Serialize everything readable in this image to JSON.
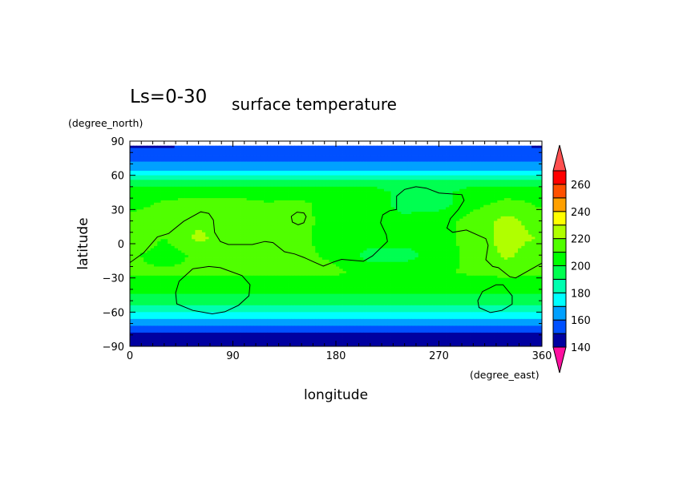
{
  "chart_data": {
    "type": "heatmap",
    "title_left": "Ls=0-30",
    "title_right": "surface temperature",
    "xlabel": "longitude",
    "ylabel": "latitude",
    "xunit": "(degree_east)",
    "yunit": "(degree_north)",
    "xlim": [
      0,
      360
    ],
    "ylim": [
      -90,
      90
    ],
    "xticks": [
      0,
      90,
      180,
      270,
      360
    ],
    "xtick_labels": [
      "0",
      "90",
      "180",
      "270",
      "360"
    ],
    "yticks": [
      90,
      60,
      30,
      0,
      -30,
      -60,
      -90
    ],
    "ytick_labels": [
      "90",
      "60",
      "30",
      "0",
      "−30",
      "−60",
      "−90"
    ],
    "grid": false,
    "colorbar": {
      "levels": [
        140,
        150,
        160,
        170,
        180,
        190,
        200,
        210,
        220,
        230,
        240,
        250,
        260,
        270
      ],
      "labels": [
        "140",
        "160",
        "180",
        "200",
        "220",
        "240",
        "260"
      ],
      "colors": [
        "#0000a0",
        "#0050ff",
        "#00a0ff",
        "#00ffff",
        "#00ffb0",
        "#00ff50",
        "#00ff00",
        "#50ff00",
        "#b0ff00",
        "#ffff00",
        "#ffa000",
        "#ff5000",
        "#ff0000"
      ],
      "over_color": "#ff5050",
      "under_color": "#ff10a0"
    },
    "grid_lon": [
      0,
      30,
      60,
      90,
      120,
      150,
      180,
      210,
      240,
      270,
      300,
      330,
      360
    ],
    "grid_lat": [
      86,
      80,
      75,
      66,
      62,
      58,
      54,
      45,
      35,
      20,
      5,
      -10,
      -25,
      -35,
      -42,
      -50,
      -56,
      -63,
      -68,
      -73,
      -79,
      -86
    ],
    "values": [
      [
        146,
        146,
        155,
        155,
        155,
        155,
        155,
        155,
        155,
        155,
        155,
        155,
        146
      ],
      [
        155,
        155,
        155,
        155,
        155,
        155,
        155,
        155,
        155,
        155,
        155,
        155,
        155
      ],
      [
        156,
        156,
        156,
        156,
        156,
        156,
        156,
        156,
        156,
        156,
        156,
        156,
        156
      ],
      [
        166,
        166,
        166,
        166,
        166,
        166,
        166,
        166,
        166,
        166,
        166,
        166,
        166
      ],
      [
        176,
        176,
        176,
        176,
        176,
        176,
        176,
        176,
        176,
        176,
        176,
        176,
        176
      ],
      [
        186,
        186,
        186,
        186,
        186,
        186,
        186,
        186,
        186,
        186,
        186,
        186,
        186
      ],
      [
        196,
        196,
        196,
        196,
        196,
        196,
        196,
        196,
        196,
        196,
        196,
        196,
        196
      ],
      [
        205,
        205,
        205,
        205,
        205,
        205,
        205,
        205,
        196,
        196,
        205,
        205,
        205
      ],
      [
        206,
        212,
        215,
        215,
        211,
        212,
        205,
        205,
        196,
        196,
        206,
        214,
        208
      ],
      [
        215,
        212,
        218,
        215,
        212,
        213,
        205,
        205,
        203,
        205,
        215,
        223,
        215
      ],
      [
        219,
        210,
        223,
        212,
        212,
        212,
        205,
        205,
        205,
        205,
        215,
        224,
        219
      ],
      [
        212,
        205,
        212,
        212,
        212,
        212,
        208,
        196,
        196,
        205,
        213,
        222,
        212
      ],
      [
        212,
        212,
        212,
        212,
        212,
        212,
        212,
        205,
        205,
        208,
        212,
        214,
        212
      ],
      [
        205,
        205,
        205,
        205,
        205,
        205,
        205,
        205,
        205,
        205,
        205,
        205,
        205
      ],
      [
        202,
        202,
        202,
        202,
        202,
        202,
        202,
        202,
        202,
        202,
        202,
        202,
        202
      ],
      [
        194,
        194,
        194,
        194,
        194,
        194,
        194,
        194,
        194,
        194,
        194,
        194,
        194
      ],
      [
        186,
        186,
        186,
        186,
        186,
        186,
        186,
        186,
        186,
        186,
        186,
        186,
        186
      ],
      [
        176,
        176,
        176,
        176,
        176,
        176,
        176,
        176,
        176,
        176,
        176,
        176,
        176
      ],
      [
        168,
        168,
        168,
        168,
        168,
        168,
        168,
        168,
        168,
        168,
        168,
        168,
        168
      ],
      [
        158,
        158,
        158,
        158,
        158,
        158,
        158,
        158,
        158,
        158,
        158,
        158,
        158
      ],
      [
        146,
        146,
        146,
        146,
        146,
        146,
        146,
        146,
        146,
        146,
        146,
        146,
        146
      ],
      [
        145,
        145,
        145,
        145,
        145,
        145,
        145,
        145,
        145,
        145,
        145,
        145,
        145
      ]
    ],
    "contour_lines": [
      [
        [
          0,
          -16.6
        ],
        [
          12,
          -8
        ],
        [
          24,
          6
        ],
        [
          34,
          9
        ],
        [
          47,
          19.6
        ],
        [
          62,
          28
        ],
        [
          69,
          26.6
        ],
        [
          73,
          20.7
        ],
        [
          74,
          10
        ],
        [
          79,
          2
        ],
        [
          86,
          -0.7
        ],
        [
          107,
          -0.7
        ],
        [
          118,
          2
        ],
        [
          125,
          1
        ],
        [
          135,
          -7
        ],
        [
          144,
          -9
        ],
        [
          152,
          -12
        ],
        [
          162,
          -16.6
        ],
        [
          169,
          -19.6
        ],
        [
          178,
          -16
        ],
        [
          185,
          -13.7
        ],
        [
          195,
          -14.6
        ],
        [
          204,
          -15.4
        ],
        [
          212,
          -10.7
        ],
        [
          225,
          2
        ],
        [
          224,
          8
        ],
        [
          219,
          18.4
        ],
        [
          221,
          25.4
        ],
        [
          227,
          29
        ],
        [
          233,
          30
        ],
        [
          233,
          41.7
        ],
        [
          240,
          47.6
        ],
        [
          250,
          50
        ],
        [
          259,
          48.7
        ],
        [
          270,
          44.5
        ],
        [
          290,
          43
        ],
        [
          292,
          38
        ],
        [
          287,
          30
        ],
        [
          280,
          22
        ],
        [
          277,
          13.8
        ],
        [
          282,
          10
        ],
        [
          294,
          12
        ],
        [
          311,
          4.4
        ],
        [
          313,
          -1.4
        ],
        [
          311,
          -14
        ],
        [
          317,
          -20
        ],
        [
          322,
          -21
        ],
        [
          332,
          -29
        ],
        [
          337,
          -30
        ],
        [
          360,
          -17
        ]
      ],
      [
        [
          141,
          24
        ],
        [
          146,
          27.7
        ],
        [
          152,
          27
        ],
        [
          154,
          23.8
        ],
        [
          152,
          18.4
        ],
        [
          147,
          16.6
        ],
        [
          142,
          19
        ],
        [
          141,
          24
        ]
      ],
      [
        [
          55,
          -22
        ],
        [
          69,
          -20
        ],
        [
          79,
          -21
        ],
        [
          98,
          -28
        ],
        [
          105,
          -36
        ],
        [
          104,
          -45.7
        ],
        [
          95,
          -54
        ],
        [
          83,
          -59.7
        ],
        [
          72,
          -61.5
        ],
        [
          55,
          -58.5
        ],
        [
          41,
          -52.7
        ],
        [
          40,
          -43
        ],
        [
          43,
          -33
        ],
        [
          55,
          -22
        ]
      ],
      [
        [
          320,
          -36
        ],
        [
          326,
          -36
        ],
        [
          334,
          -45.7
        ],
        [
          334,
          -53
        ],
        [
          325,
          -58.5
        ],
        [
          315,
          -60.4
        ],
        [
          305,
          -56
        ],
        [
          304,
          -50
        ],
        [
          308,
          -42
        ],
        [
          320,
          -36
        ]
      ]
    ]
  }
}
